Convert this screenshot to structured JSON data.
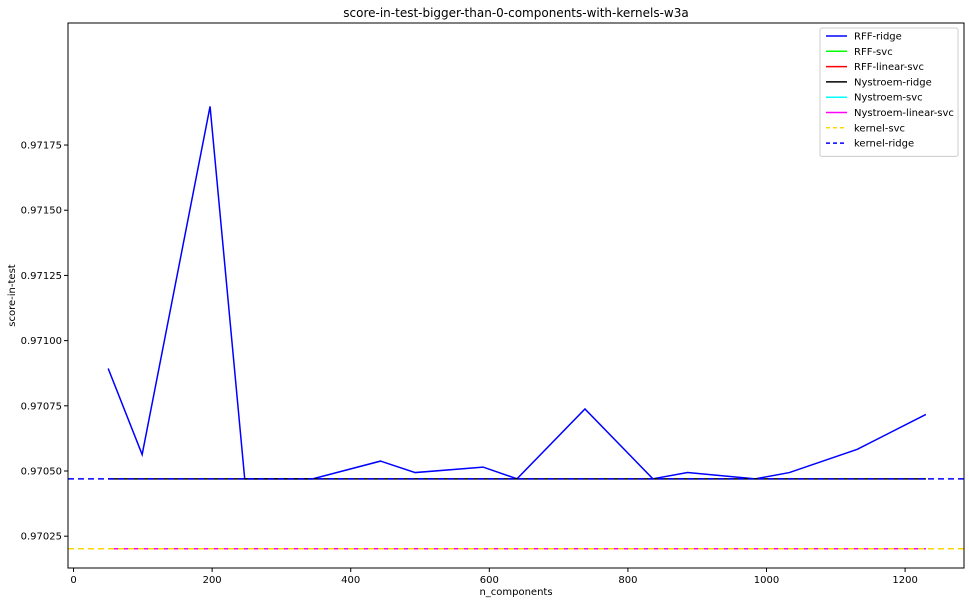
{
  "chart_data": {
    "type": "line",
    "title": "score-in-test-bigger-than-0-components-with-kernels-w3a",
    "xlabel": "n_components",
    "ylabel": "score-in-test",
    "xlim": [
      -8,
      1285
    ],
    "ylim": [
      0.970128,
      0.972218
    ],
    "xticks": [
      0,
      200,
      400,
      600,
      800,
      1000,
      1200
    ],
    "xtick_labels": [
      "0",
      "200",
      "400",
      "600",
      "800",
      "1000",
      "1200"
    ],
    "yticks": [
      0.97025,
      0.9705,
      0.97075,
      0.971,
      0.97125,
      0.9715,
      0.97175
    ],
    "ytick_labels": [
      "0.97025",
      "0.97050",
      "0.97075",
      "0.97100",
      "0.97125",
      "0.97150",
      "0.97175"
    ],
    "grid": false,
    "legend_position": "top-right",
    "series": [
      {
        "name": "RFF-ridge",
        "color": "#0000ff",
        "style": "solid",
        "x": [
          50,
          99,
          197,
          247,
          345,
          443,
          493,
          591,
          640,
          738,
          836,
          886,
          984,
          1033,
          1131,
          1230
        ],
        "y": [
          0.970893,
          0.970563,
          0.971898,
          0.97047,
          0.97047,
          0.970538,
          0.970494,
          0.970515,
          0.97047,
          0.970738,
          0.97047,
          0.970494,
          0.97047,
          0.970494,
          0.970583,
          0.970717
        ]
      },
      {
        "name": "RFF-svc",
        "color": "#00ff00",
        "style": "solid",
        "x": [
          50,
          1230
        ],
        "y": [
          0.970202,
          0.970202
        ]
      },
      {
        "name": "RFF-linear-svc",
        "color": "#ff0000",
        "style": "solid",
        "x": [
          50,
          1230
        ],
        "y": [
          0.970202,
          0.970202
        ]
      },
      {
        "name": "Nystroem-ridge",
        "color": "#000000",
        "style": "solid",
        "x": [
          50,
          1230
        ],
        "y": [
          0.97047,
          0.97047
        ]
      },
      {
        "name": "Nystroem-svc",
        "color": "#00ffff",
        "style": "solid",
        "x": [
          50,
          1230
        ],
        "y": [
          0.970202,
          0.970202
        ]
      },
      {
        "name": "Nystroem-linear-svc",
        "color": "#ff00ff",
        "style": "solid",
        "x": [
          50,
          1230
        ],
        "y": [
          0.970202,
          0.970202
        ]
      },
      {
        "name": "kernel-svc",
        "color": "#ffd700",
        "style": "dashed",
        "x": [
          -8,
          1285
        ],
        "y": [
          0.970202,
          0.970202
        ]
      },
      {
        "name": "kernel-ridge",
        "color": "#0000ff",
        "style": "dashed",
        "x": [
          -8,
          1285
        ],
        "y": [
          0.97047,
          0.97047
        ]
      }
    ]
  }
}
